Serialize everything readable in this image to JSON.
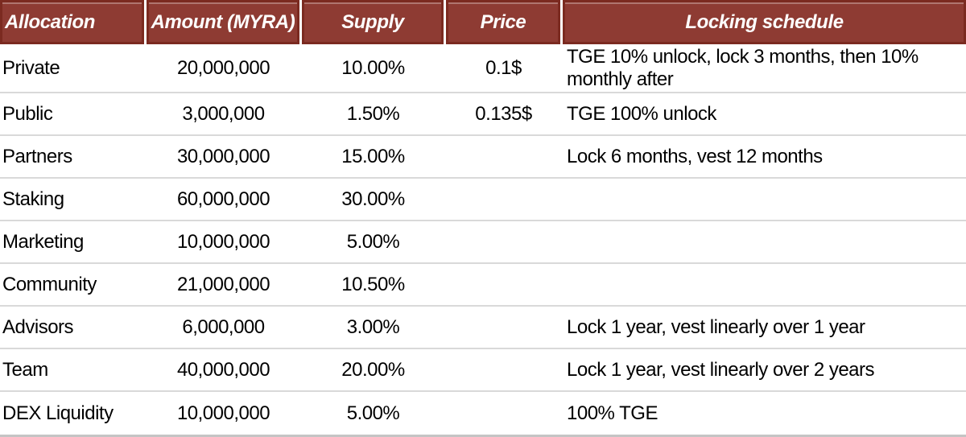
{
  "colors": {
    "header_bg": "#8e3b33",
    "header_border": "#7b2a20",
    "header_text": "#ffffff",
    "body_text": "#000000",
    "row_divider": "#d9d9d9",
    "bottom_bar": "#c4c4c4"
  },
  "table": {
    "headers": [
      "Allocation",
      "Amount (MYRA)",
      "Supply",
      "Price",
      "Locking schedule"
    ],
    "rows": [
      {
        "allocation": "Private",
        "amount": "20,000,000",
        "supply": "10.00%",
        "price": "0.1$",
        "locking": "TGE 10% unlock, lock 3 months, then 10% monthly after"
      },
      {
        "allocation": "Public",
        "amount": "3,000,000",
        "supply": "1.50%",
        "price": "0.135$",
        "locking": "TGE 100% unlock"
      },
      {
        "allocation": "Partners",
        "amount": "30,000,000",
        "supply": "15.00%",
        "price": "",
        "locking": "Lock 6 months, vest 12 months"
      },
      {
        "allocation": "Staking",
        "amount": "60,000,000",
        "supply": "30.00%",
        "price": "",
        "locking": ""
      },
      {
        "allocation": "Marketing",
        "amount": "10,000,000",
        "supply": "5.00%",
        "price": "",
        "locking": ""
      },
      {
        "allocation": "Community",
        "amount": "21,000,000",
        "supply": "10.50%",
        "price": "",
        "locking": ""
      },
      {
        "allocation": "Advisors",
        "amount": "6,000,000",
        "supply": "3.00%",
        "price": "",
        "locking": "Lock 1 year, vest linearly over 1 year"
      },
      {
        "allocation": "Team",
        "amount": "40,000,000",
        "supply": "20.00%",
        "price": "",
        "locking": "Lock 1 year, vest linearly over 2 years"
      },
      {
        "allocation": "DEX Liquidity",
        "amount": "10,000,000",
        "supply": "5.00%",
        "price": "",
        "locking": "100% TGE"
      }
    ]
  },
  "chart_data": {
    "type": "table",
    "columns": [
      "Allocation",
      "Amount (MYRA)",
      "Supply",
      "Price",
      "Locking schedule"
    ],
    "rows": [
      [
        "Private",
        "20,000,000",
        "10.00%",
        "0.1$",
        "TGE 10% unlock, lock 3 months, then 10% monthly after"
      ],
      [
        "Public",
        "3,000,000",
        "1.50%",
        "0.135$",
        "TGE 100% unlock"
      ],
      [
        "Partners",
        "30,000,000",
        "15.00%",
        "",
        "Lock 6 months, vest 12 months"
      ],
      [
        "Staking",
        "60,000,000",
        "30.00%",
        "",
        ""
      ],
      [
        "Marketing",
        "10,000,000",
        "5.00%",
        "",
        ""
      ],
      [
        "Community",
        "21,000,000",
        "10.50%",
        "",
        ""
      ],
      [
        "Advisors",
        "6,000,000",
        "3.00%",
        "",
        "Lock 1 year, vest linearly over 1 year"
      ],
      [
        "Team",
        "40,000,000",
        "20.00%",
        "",
        "Lock 1 year, vest linearly over 2 years"
      ],
      [
        "DEX Liquidity",
        "10,000,000",
        "5.00%",
        "",
        "100% TGE"
      ]
    ]
  }
}
